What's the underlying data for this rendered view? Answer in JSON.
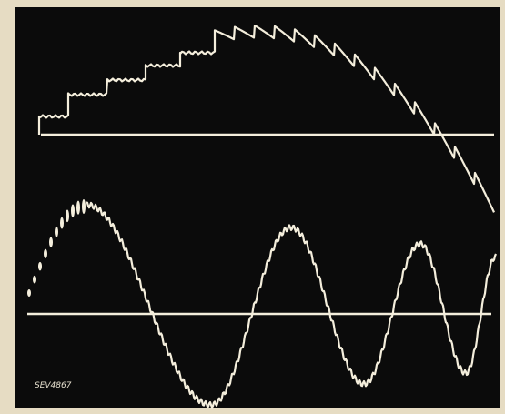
{
  "label": "SEV4867"
}
